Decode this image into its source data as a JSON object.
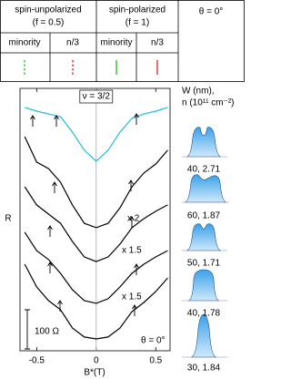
{
  "legend": {
    "groups": [
      {
        "title": "spin-unpolarized",
        "subtitle": "(f = 0.5)",
        "columns": [
          {
            "label": "minority",
            "color": "#22bb22",
            "style": "dashed"
          },
          {
            "label": "n/3",
            "color": "#dd2222",
            "style": "dashed"
          }
        ]
      },
      {
        "title": "spin-polarized",
        "subtitle": "(f = 1)",
        "columns": [
          {
            "label": "minority",
            "color": "#22bb22",
            "style": "solid"
          },
          {
            "label": "n/3",
            "color": "#dd2222",
            "style": "solid"
          }
        ]
      }
    ],
    "angle": "θ = 0°"
  },
  "insets": {
    "title": "W (nm),",
    "subtitle": "n (10¹¹ cm⁻²)",
    "labels": [
      "40, 2.71",
      "60, 1.87",
      "50, 1.71",
      "40, 1.78",
      "30, 1.84"
    ]
  },
  "chart_data": {
    "type": "line",
    "ylabel": "R",
    "xlabel": "B*(T)",
    "x": [
      -0.6,
      -0.5,
      -0.4,
      -0.3,
      -0.2,
      -0.1,
      0,
      0.1,
      0.2,
      0.3,
      0.4,
      0.5,
      0.6
    ],
    "xlim": [
      -0.64,
      0.62
    ],
    "xticks": [
      -0.5,
      0,
      0.5
    ],
    "ylim": [
      0,
      12
    ],
    "series": [
      {
        "color": "#22bbdd",
        "values": [
          11.13,
          10.96,
          10.83,
          10.71,
          10.0,
          9.17,
          8.67,
          9.17,
          10.0,
          10.63,
          10.83,
          10.96,
          11.13
        ]
      },
      {
        "color": "#000000",
        "values": [
          9.79,
          8.63,
          8.33,
          7.71,
          6.67,
          5.83,
          5.63,
          5.83,
          6.54,
          7.5,
          8.13,
          8.54,
          9.17
        ]
      },
      {
        "color": "#000000",
        "values": [
          7.5,
          6.67,
          6.25,
          5.83,
          5.0,
          4.29,
          4.08,
          4.29,
          4.88,
          5.63,
          6.04,
          6.38,
          6.67
        ]
      },
      {
        "color": "#000000",
        "values": [
          5.42,
          4.58,
          4.17,
          3.54,
          2.79,
          2.29,
          2.17,
          2.38,
          2.92,
          3.54,
          3.96,
          4.29,
          4.58
        ]
      },
      {
        "color": "#000000",
        "values": [
          3.96,
          2.92,
          2.29,
          1.88,
          1.04,
          0.63,
          0.54,
          0.63,
          1.04,
          1.79,
          2.21,
          2.71,
          3.33
        ]
      }
    ],
    "annotations": [
      "ν = 3/2",
      "x 2",
      "x 1.5",
      "x 1.5",
      "100 Ω",
      "θ = 0°"
    ]
  }
}
